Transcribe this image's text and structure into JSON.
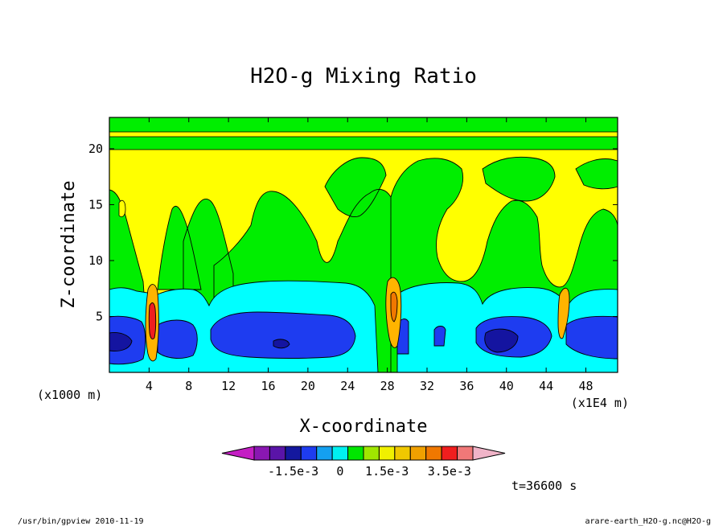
{
  "chart_data": {
    "type": "heatmap",
    "title": "H2O-g Mixing Ratio",
    "xlabel": "X-coordinate",
    "ylabel": "Z-coordinate",
    "x_unit_left": "(x1000 m)",
    "x_unit_right": "(x1E4 m)",
    "xlim": [
      0,
      51.2
    ],
    "ylim": [
      0,
      22.8
    ],
    "x_ticks": [
      4,
      8,
      12,
      16,
      20,
      24,
      28,
      32,
      36,
      40,
      44,
      48
    ],
    "y_ticks": [
      5,
      10,
      15,
      20
    ],
    "timestamp": "t=36600 s",
    "colorbar": {
      "colors": [
        "#c41ec4",
        "#8a17b2",
        "#5a14a8",
        "#14189e",
        "#1e3cf0",
        "#14a0f0",
        "#00f0f0",
        "#00e600",
        "#a0e600",
        "#f0f000",
        "#f0c800",
        "#f0a000",
        "#f07800",
        "#f01e1e",
        "#f07878",
        "#f0b4c8"
      ],
      "labels": [
        "-1.5e-3",
        "0",
        "1.5e-3",
        "3.5e-3"
      ]
    },
    "field_colors": {
      "yellow": "#ffff00",
      "green": "#00ee00",
      "cyan": "#00ffff",
      "blue": "#1e3cf0",
      "navy": "#1414a0",
      "orange": "#ffb400",
      "red": "#f01e1e"
    }
  },
  "footer": {
    "left": "/usr/bin/gpview  2010-11-19",
    "right": "arare-earth_H2O-g.nc@H2O-g"
  }
}
